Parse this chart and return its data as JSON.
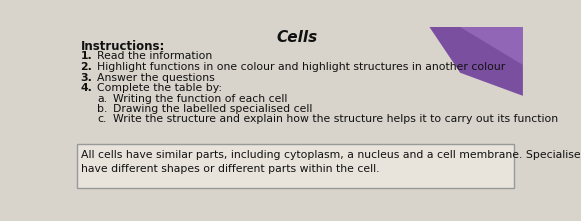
{
  "bg_color": "#d8d4cc",
  "box_bg_color": "#e8e4dc",
  "box_edge_color": "#999999",
  "title_text": "Instructions:",
  "items": [
    {
      "num": "1.",
      "text": "Read the information"
    },
    {
      "num": "2.",
      "text": "Highlight functions in one colour and highlight structures in another colour"
    },
    {
      "num": "3.",
      "text": "Answer the questions"
    },
    {
      "num": "4.",
      "text": "Complete the table by:"
    }
  ],
  "sub_items": [
    {
      "letter": "a.",
      "text": "Writing the function of each cell"
    },
    {
      "letter": "b.",
      "text": "Drawing the labelled specialised cell"
    },
    {
      "letter": "c.",
      "text": "Write the structure and explain how the structure helps it to carry out its function"
    }
  ],
  "box_line1": "All cells have similar parts, including cytoplasm, a nucleus and a cell membrane. Specialised cells may",
  "box_line2": "have different shapes or different parts within the cell.",
  "text_color": "#111111",
  "font_size": 7.8,
  "title_font_size": 8.5,
  "purple_color": "#7b4fa0",
  "purple2_color": "#9b70c0",
  "header_text": "Cells"
}
